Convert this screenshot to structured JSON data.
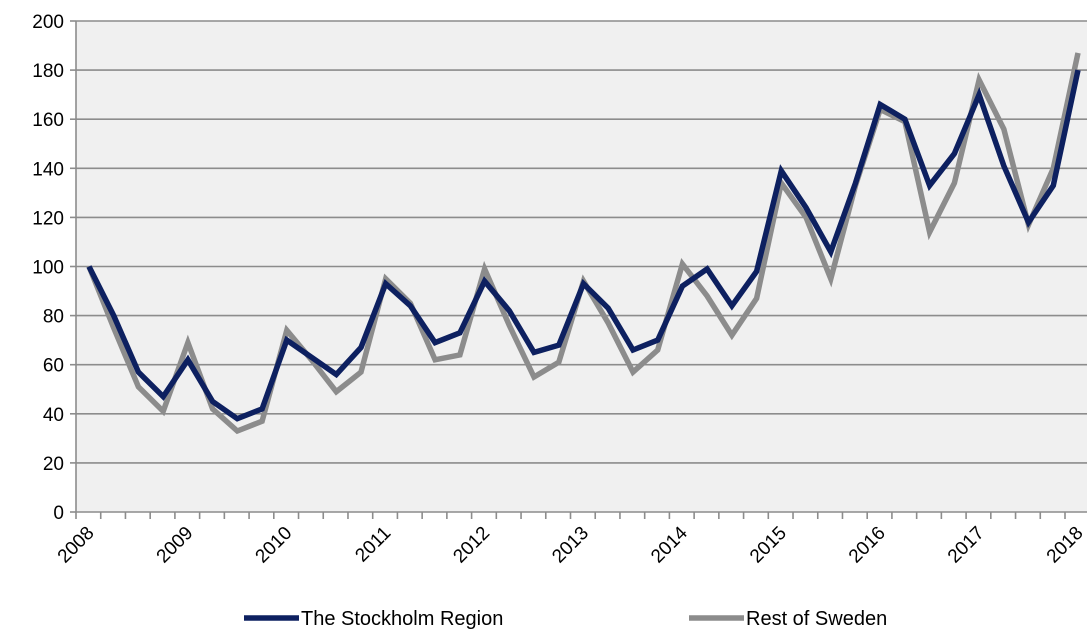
{
  "chart_data": {
    "type": "line",
    "title": "",
    "xlabel": "",
    "ylabel": "",
    "ylim": [
      0,
      200
    ],
    "yticks": [
      0,
      20,
      40,
      60,
      80,
      100,
      120,
      140,
      160,
      180,
      200
    ],
    "x_labels": [
      "2008",
      "2009",
      "2010",
      "2011",
      "2012",
      "2013",
      "2014",
      "2015",
      "2016",
      "2017",
      "2018"
    ],
    "points_per_year": 4,
    "grid": "horizontal",
    "legend_position": "bottom",
    "series": [
      {
        "name": "The Stockholm Region",
        "color": "#0d2060",
        "values": [
          100,
          80,
          57,
          47,
          62,
          45,
          38,
          42,
          70,
          63,
          56,
          67,
          93,
          84,
          69,
          73,
          94,
          82,
          65,
          68,
          93,
          83,
          66,
          70,
          92,
          99,
          84,
          98,
          139,
          124,
          106,
          134,
          166,
          160,
          133,
          146,
          170,
          141,
          118,
          133,
          180
        ]
      },
      {
        "name": "Rest of Sweden",
        "color": "#8c8c8c",
        "values": [
          100,
          75,
          51,
          41,
          69,
          42,
          33,
          37,
          74,
          62,
          49,
          57,
          95,
          85,
          62,
          64,
          99,
          76,
          55,
          61,
          94,
          77,
          57,
          66,
          101,
          88,
          72,
          87,
          134,
          120,
          95,
          133,
          164,
          159,
          114,
          134,
          176,
          156,
          117,
          140,
          187
        ]
      }
    ]
  }
}
